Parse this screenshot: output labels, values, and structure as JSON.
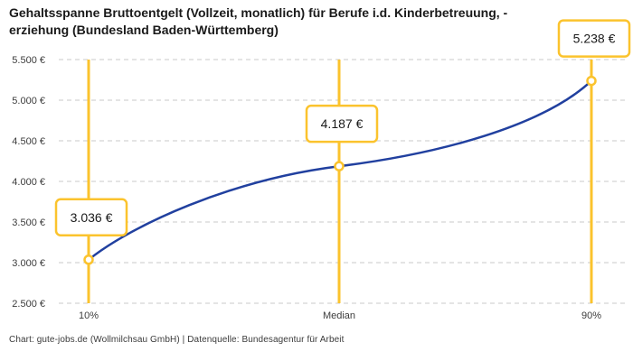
{
  "title": "Gehaltsspanne Bruttoentgelt (Vollzeit, monatlich) für Berufe i.d. Kinderbetreuung, -\nerziehung (Bundesland Baden-Württemberg)",
  "footer": "Chart: gute-jobs.de (Wollmilchsau GmbH) | Datenquelle: Bundesagentur für Arbeit",
  "colors": {
    "accent_yellow": "#FBC32D",
    "line_blue": "#21409F",
    "grid": "#C8C8C8",
    "text_dark": "#1A1A1A",
    "text_muted": "#3C3C3C"
  },
  "chart_data": {
    "type": "line",
    "title": "Gehaltsspanne Bruttoentgelt (Vollzeit, monatlich) für Berufe i.d. Kinderbetreuung, -erziehung (Bundesland Baden-Württemberg)",
    "categories": [
      "10%",
      "Median",
      "90%"
    ],
    "values": [
      3036,
      4187,
      5238
    ],
    "point_labels": [
      "3.036 €",
      "4.187 €",
      "5.238 €"
    ],
    "series_name": "Bruttoentgelt (Vollzeit, monatlich)",
    "xlabel": "",
    "ylabel": "",
    "ylim": [
      2500,
      5500
    ],
    "y_tick_values": [
      5500,
      5000,
      4500,
      4000,
      3500,
      3000,
      2500
    ],
    "y_tick_labels": [
      "5.500 €",
      "5.000 €",
      "4.500 €",
      "4.000 €",
      "3.500 €",
      "3.000 €",
      "2.500 €"
    ],
    "grid": "horizontal-dashed",
    "legend_position": "none",
    "annotations": "vertical yellow guide line with circle marker and framed value label at each percentile"
  }
}
